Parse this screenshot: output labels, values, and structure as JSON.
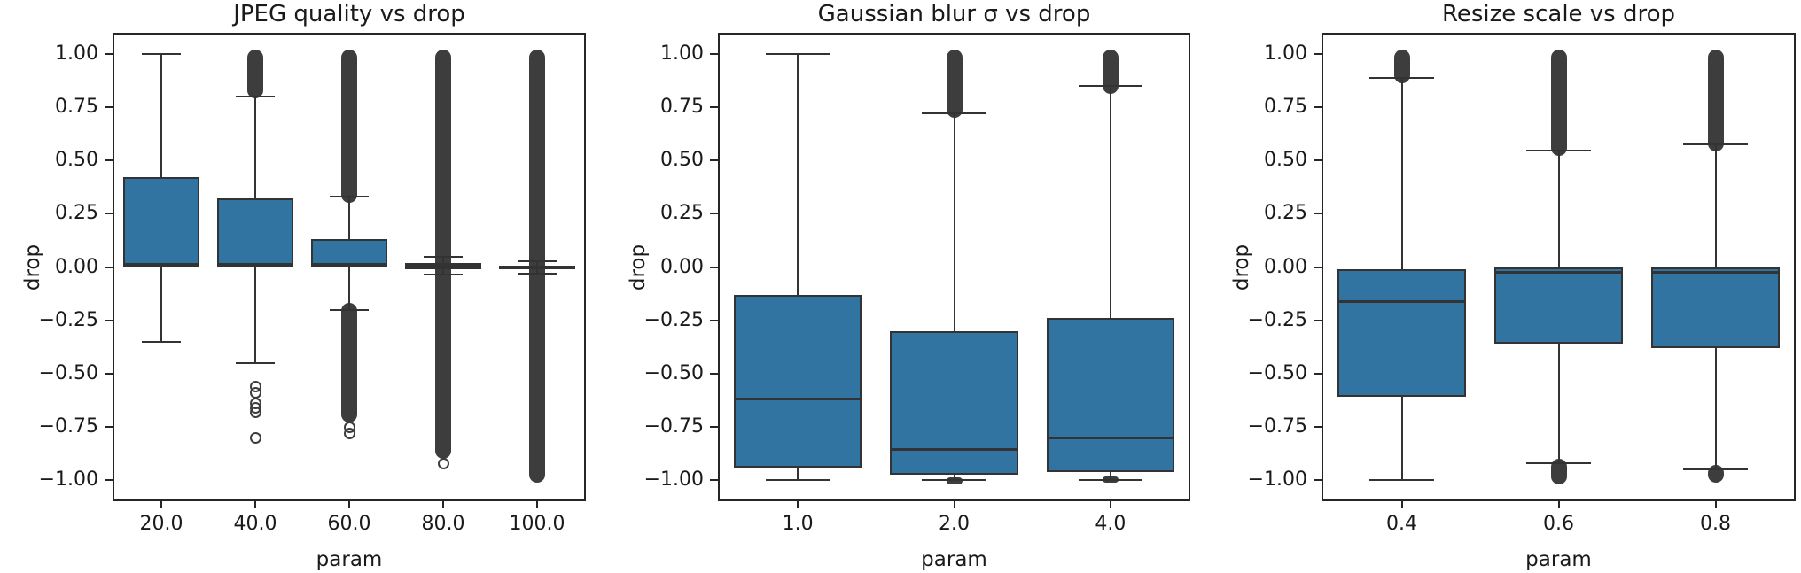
{
  "figure": {
    "background": "#ffffff"
  },
  "colors": {
    "box_fill": "#3274a1",
    "box_edge": "#333333",
    "whisker": "#333333",
    "median": "#333333",
    "outlier": "#3d3d3d",
    "spine": "#262626",
    "text": "#1a1a1a"
  },
  "chart_data": [
    {
      "type": "box",
      "title": "JPEG quality vs drop",
      "xlabel": "param",
      "ylabel": "drop",
      "ylim": [
        -1.09,
        1.09
      ],
      "grid": false,
      "yticks": [
        1.0,
        0.75,
        0.5,
        0.25,
        0.0,
        -0.25,
        -0.5,
        -0.75,
        -1.0
      ],
      "ytick_labels": [
        "1.00",
        "0.75",
        "0.50",
        "0.25",
        "0.00",
        "−0.25",
        "−0.50",
        "−0.75",
        "−1.00"
      ],
      "categories": [
        "20.0",
        "40.0",
        "60.0",
        "80.0",
        "100.0"
      ],
      "boxes": [
        {
          "category": "20.0",
          "whisker_low": -0.35,
          "q1": 0.0,
          "median": 0.013,
          "q3": 0.42,
          "whisker_high": 1.0,
          "dense_fliers": [],
          "point_fliers": []
        },
        {
          "category": "40.0",
          "whisker_low": -0.45,
          "q1": 0.0,
          "median": 0.013,
          "q3": 0.32,
          "whisker_high": 0.8,
          "dense_fliers": [
            [
              0.79,
              1.02
            ]
          ],
          "point_fliers": [
            -0.56,
            -0.59,
            -0.64,
            -0.66,
            -0.68,
            -0.8
          ]
        },
        {
          "category": "60.0",
          "whisker_low": -0.2,
          "q1": 0.0,
          "median": 0.012,
          "q3": 0.13,
          "whisker_high": 0.33,
          "dense_fliers": [
            [
              0.3,
              1.02
            ],
            [
              -0.73,
              -0.17
            ]
          ],
          "point_fliers": [
            -0.75,
            -0.78
          ]
        },
        {
          "category": "80.0",
          "whisker_low": -0.035,
          "q1": -0.01,
          "median": 0.006,
          "q3": 0.018,
          "whisker_high": 0.046,
          "dense_fliers": [
            [
              -0.9,
              1.02
            ]
          ],
          "point_fliers": [
            -0.92
          ]
        },
        {
          "category": "100.0",
          "whisker_low": -0.03,
          "q1": -0.012,
          "median": 0.0,
          "q3": 0.006,
          "whisker_high": 0.025,
          "dense_fliers": [
            [
              -1.01,
              1.02
            ]
          ],
          "point_fliers": []
        }
      ]
    },
    {
      "type": "box",
      "title": "Gaussian blur σ vs drop",
      "xlabel": "param",
      "ylabel": "drop",
      "ylim": [
        -1.09,
        1.09
      ],
      "grid": false,
      "yticks": [
        1.0,
        0.75,
        0.5,
        0.25,
        0.0,
        -0.25,
        -0.5,
        -0.75,
        -1.0
      ],
      "ytick_labels": [
        "1.00",
        "0.75",
        "0.50",
        "0.25",
        "0.00",
        "−0.25",
        "−0.50",
        "−0.75",
        "−1.00"
      ],
      "categories": [
        "1.0",
        "2.0",
        "4.0"
      ],
      "boxes": [
        {
          "category": "1.0",
          "whisker_low": -1.0,
          "q1": -0.94,
          "median": -0.62,
          "q3": -0.13,
          "whisker_high": 1.0,
          "dense_fliers": [],
          "point_fliers": []
        },
        {
          "category": "2.0",
          "whisker_low": -1.0,
          "q1": -0.975,
          "median": -0.855,
          "q3": -0.3,
          "whisker_high": 0.72,
          "dense_fliers": [
            [
              0.7,
              1.02
            ],
            [
              -1.02,
              -0.985
            ]
          ],
          "point_fliers": []
        },
        {
          "category": "4.0",
          "whisker_low": -1.0,
          "q1": -0.96,
          "median": -0.8,
          "q3": -0.24,
          "whisker_high": 0.85,
          "dense_fliers": [
            [
              0.81,
              1.02
            ],
            [
              -1.01,
              -0.98
            ]
          ],
          "point_fliers": []
        }
      ]
    },
    {
      "type": "box",
      "title": "Resize scale vs drop",
      "xlabel": "param",
      "ylabel": "drop",
      "ylim": [
        -1.09,
        1.09
      ],
      "grid": false,
      "yticks": [
        1.0,
        0.75,
        0.5,
        0.25,
        0.0,
        -0.25,
        -0.5,
        -0.75,
        -1.0
      ],
      "ytick_labels": [
        "1.00",
        "0.75",
        "0.50",
        "0.25",
        "0.00",
        "−0.25",
        "−0.50",
        "−0.75",
        "−1.00"
      ],
      "categories": [
        "0.4",
        "0.6",
        "0.8"
      ],
      "boxes": [
        {
          "category": "0.4",
          "whisker_low": -1.0,
          "q1": -0.61,
          "median": -0.16,
          "q3": -0.01,
          "whisker_high": 0.885,
          "dense_fliers": [
            [
              0.86,
              1.02
            ]
          ],
          "point_fliers": []
        },
        {
          "category": "0.6",
          "whisker_low": -0.92,
          "q1": -0.36,
          "median": -0.025,
          "q3": 0.0,
          "whisker_high": 0.545,
          "dense_fliers": [
            [
              0.52,
              1.02
            ],
            [
              -1.02,
              -0.9
            ]
          ],
          "point_fliers": []
        },
        {
          "category": "0.8",
          "whisker_low": -0.95,
          "q1": -0.38,
          "median": -0.025,
          "q3": 0.0,
          "whisker_high": 0.575,
          "dense_fliers": [
            [
              0.54,
              1.02
            ],
            [
              -1.01,
              -0.93
            ]
          ],
          "point_fliers": []
        }
      ]
    }
  ]
}
